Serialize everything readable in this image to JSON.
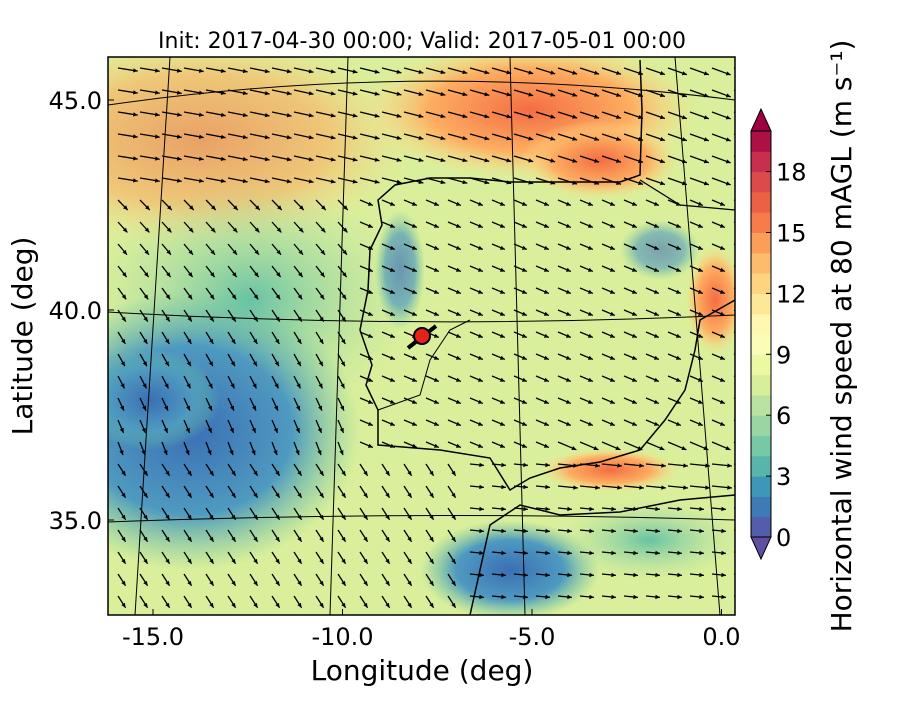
{
  "map": {
    "title": "Init: 2017-04-30 00:00; Valid: 2017-05-01 00:00",
    "xlabel": "Longitude (deg)",
    "ylabel": "Latitude (deg)",
    "xticks": [
      {
        "value": -15,
        "label": "-15.0"
      },
      {
        "value": -10,
        "label": "-10.0"
      },
      {
        "value": -5,
        "label": "-5.0"
      },
      {
        "value": 0,
        "label": "0.0"
      }
    ],
    "yticks": [
      {
        "value": 45,
        "label": "45.0"
      },
      {
        "value": 40,
        "label": "40.0"
      },
      {
        "value": 35,
        "label": "35.0"
      }
    ],
    "colorbar": {
      "label": "Horizontal wind speed at 80 mAGL (m s⁻¹)",
      "clim": [
        0,
        20
      ],
      "ticks": [
        0,
        3,
        6,
        9,
        12,
        15,
        18
      ]
    }
  }
}
